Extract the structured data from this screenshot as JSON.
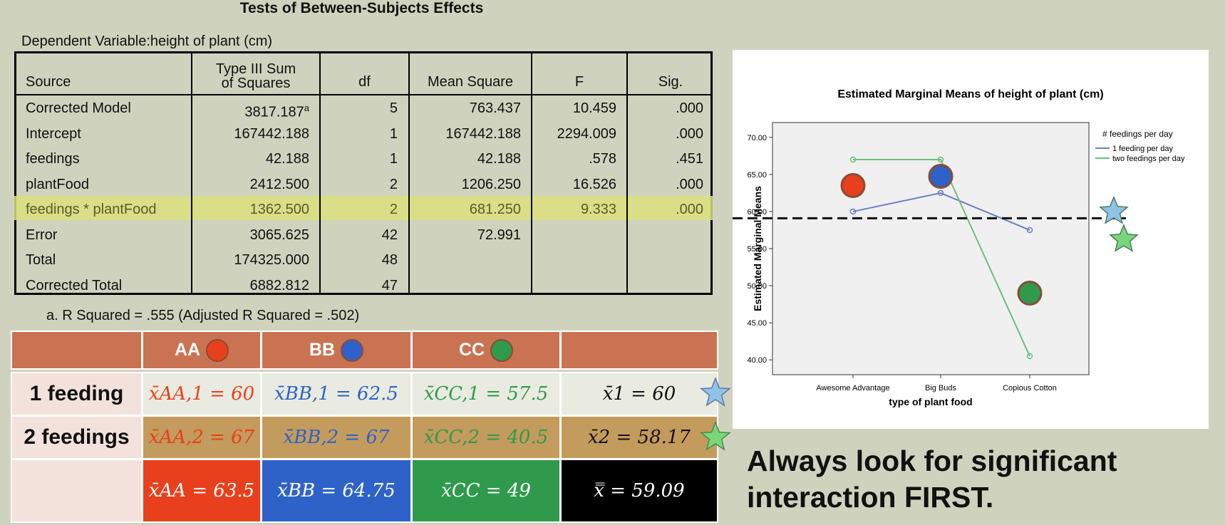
{
  "anova": {
    "title": "Tests of Between-Subjects Effects",
    "dependent_variable": "Dependent Variable:height of plant (cm)",
    "headers": {
      "source": "Source",
      "ss_line1": "Type III Sum",
      "ss_line2": "of Squares",
      "df": "df",
      "ms": "Mean Square",
      "f": "F",
      "sig": "Sig."
    },
    "rows": [
      {
        "source": "Corrected Model",
        "ss": "3817.187",
        "ss_note": "a",
        "df": "5",
        "ms": "763.437",
        "f": "10.459",
        "sig": ".000"
      },
      {
        "source": "Intercept",
        "ss": "167442.188",
        "ss_note": "",
        "df": "1",
        "ms": "167442.188",
        "f": "2294.009",
        "sig": ".000"
      },
      {
        "source": "feedings",
        "ss": "42.188",
        "ss_note": "",
        "df": "1",
        "ms": "42.188",
        "f": ".578",
        "sig": ".451"
      },
      {
        "source": "plantFood",
        "ss": "2412.500",
        "ss_note": "",
        "df": "2",
        "ms": "1206.250",
        "f": "16.526",
        "sig": ".000"
      },
      {
        "source": "feedings * plantFood",
        "ss": "1362.500",
        "ss_note": "",
        "df": "2",
        "ms": "681.250",
        "f": "9.333",
        "sig": ".000"
      },
      {
        "source": "Error",
        "ss": "3065.625",
        "ss_note": "",
        "df": "42",
        "ms": "72.991",
        "f": "",
        "sig": ""
      },
      {
        "source": "Total",
        "ss": "174325.000",
        "ss_note": "",
        "df": "48",
        "ms": "",
        "f": "",
        "sig": ""
      },
      {
        "source": "Corrected Total",
        "ss": "6882.812",
        "ss_note": "",
        "df": "47",
        "ms": "",
        "f": "",
        "sig": ""
      }
    ],
    "footnote": "a. R Squared = .555 (Adjusted R Squared = .502)"
  },
  "means_table": {
    "col_headers": [
      "AA",
      "BB",
      "CC"
    ],
    "row_labels": [
      "1 feeding",
      "2 feedings"
    ],
    "row1": [
      "x̄AA,1 = 60",
      "x̄BB,1 = 62.5",
      "x̄CC,1 = 57.5",
      "x̄1 = 60"
    ],
    "row2": [
      "x̄AA,2 = 67",
      "x̄BB,2 = 67",
      "x̄CC,2 = 40.5",
      "x̄2 = 58.17"
    ],
    "row3": [
      "x̄AA = 63.5",
      "x̄BB = 64.75",
      "x̄CC = 49",
      "x̿ = 59.09"
    ],
    "colors": {
      "AA": "#e8401c",
      "BB": "#2e62c8",
      "CC": "#2f9a4c",
      "grand": "#000000"
    }
  },
  "note": {
    "line1": "Always look for significant",
    "line2": "interaction FIRST."
  },
  "chart_data": {
    "type": "line",
    "title": "Estimated Marginal Means of height of plant (cm)",
    "xlabel": "type of plant food",
    "ylabel": "Estimated Marginal Means",
    "categories": [
      "Awesome Advantage",
      "Big Buds",
      "Copious Cotton"
    ],
    "ylim": [
      38,
      72
    ],
    "yticks": [
      "40.00",
      "45.00",
      "50.00",
      "55.00",
      "60.00",
      "65.00",
      "70.00"
    ],
    "legend_title": "# feedings per day",
    "legend_position": "top-right",
    "series": [
      {
        "name": "1 feeding per day",
        "color": "#6a7fc0",
        "values": [
          60,
          62.5,
          57.5
        ]
      },
      {
        "name": "two feedings per day",
        "color": "#6cbf7c",
        "values": [
          67,
          67,
          40.5
        ]
      }
    ],
    "marginal_means": [
      63.5,
      64.75,
      49
    ],
    "marginal_colors": [
      "#e8401c",
      "#2e62c8",
      "#2f9a4c"
    ],
    "grand_mean": 59.09,
    "row_means": [
      60,
      58.17
    ],
    "row_mean_colors": [
      "#8fc4e8",
      "#7ad67a"
    ]
  }
}
